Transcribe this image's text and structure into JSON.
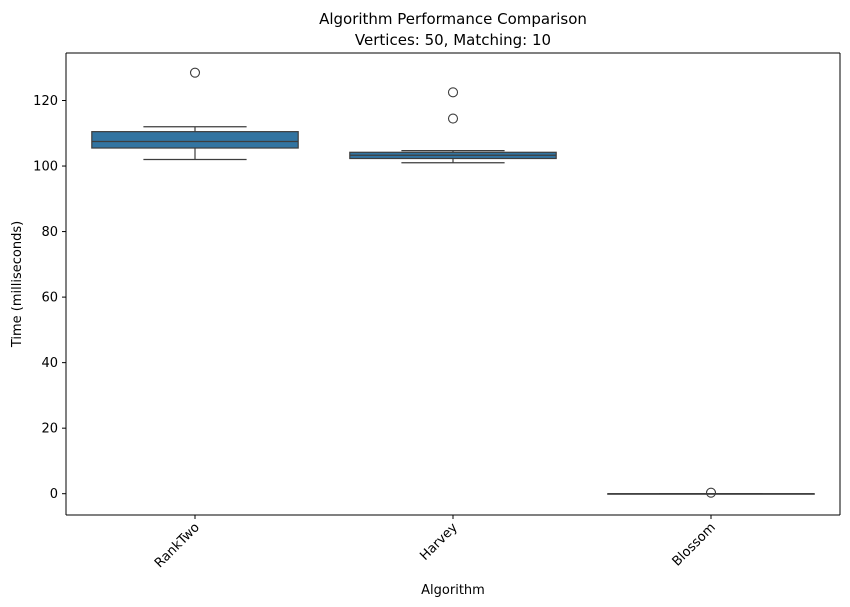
{
  "chart_data": {
    "type": "box",
    "title": "Algorithm Performance Comparison",
    "subtitle": "Vertices: 50, Matching: 10",
    "xlabel": "Algorithm",
    "ylabel": "Time (milliseconds)",
    "ylim": [
      -6.5,
      134.5
    ],
    "yticks": [
      0,
      20,
      40,
      60,
      80,
      100,
      120
    ],
    "grid": false,
    "box_color": "#3274a1",
    "line_color": "#3d3d3d",
    "categories": [
      "RankTwo",
      "Harvey",
      "Blossom"
    ],
    "boxes": [
      {
        "category": "RankTwo",
        "whisker_low": 102.0,
        "q1": 105.5,
        "median": 107.5,
        "q3": 110.5,
        "whisker_high": 112.0,
        "outliers": [
          128.5
        ]
      },
      {
        "category": "Harvey",
        "whisker_low": 101.0,
        "q1": 102.3,
        "median": 103.3,
        "q3": 104.2,
        "whisker_high": 104.7,
        "outliers": [
          114.5,
          122.5
        ]
      },
      {
        "category": "Blossom",
        "whisker_low": 0.0,
        "q1": 0.0,
        "median": 0.0,
        "q3": 0.0,
        "whisker_high": 0.0,
        "outliers": [
          0.3
        ]
      }
    ]
  }
}
